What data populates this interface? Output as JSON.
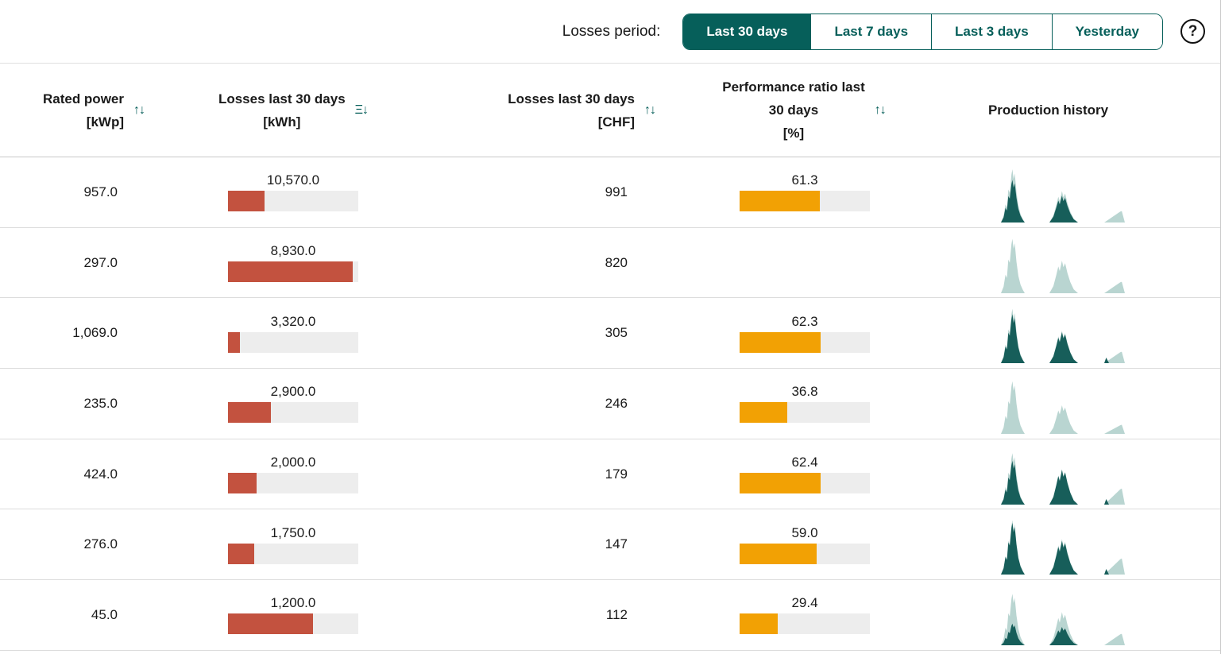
{
  "colors": {
    "teal": "#065f5a",
    "red": "#c3523f",
    "orange": "#f2a104",
    "track": "#ededed",
    "spark_dark": "#175e5a",
    "spark_light": "#b9d5d1"
  },
  "toolbar": {
    "label": "Losses period:",
    "buttons": [
      {
        "label": "Last 30 days",
        "selected": true
      },
      {
        "label": "Last 7 days",
        "selected": false
      },
      {
        "label": "Last 3 days",
        "selected": false
      },
      {
        "label": "Yesterday",
        "selected": false
      }
    ],
    "help_icon": "?"
  },
  "table": {
    "columns": [
      {
        "lines": [
          "Rated power",
          "[kWp]"
        ],
        "sort_icon": "↑↓",
        "sort_state": "inactive"
      },
      {
        "lines": [
          "Losses last 30 days",
          "[kWh]"
        ],
        "sort_icon": "Ξ↓",
        "sort_state": "active-descending"
      },
      {
        "lines": [
          "Losses last 30 days",
          "[CHF]"
        ],
        "sort_icon": "↑↓",
        "sort_state": "inactive"
      },
      {
        "lines": [
          "Performance ratio last",
          "30 days",
          "[%]"
        ],
        "sort_icon": "↑↓",
        "sort_state": "inactive"
      },
      {
        "lines": [
          "Production history"
        ]
      }
    ],
    "rows": [
      {
        "rated_power": "957.0",
        "losses_kwh": "10,570.0",
        "losses_bar_pct": 28,
        "losses_chf": "991",
        "performance_ratio": "61.3",
        "performance_bar_pct": 61.3,
        "spark": {
          "peaks": [
            {
              "h": 0.93,
              "a": 0.8
            },
            {
              "h": 0.55,
              "a": 0.85
            },
            {
              "h": 0.2,
              "a": 0
            }
          ]
        }
      },
      {
        "rated_power": "297.0",
        "losses_kwh": "8,930.0",
        "losses_bar_pct": 96,
        "losses_chf": "820",
        "performance_ratio": "",
        "performance_bar_pct": null,
        "spark": {
          "peaks": [
            {
              "h": 0.95,
              "a": 0
            },
            {
              "h": 0.57,
              "a": 0
            },
            {
              "h": 0.2,
              "a": 0
            }
          ]
        }
      },
      {
        "rated_power": "1,069.0",
        "losses_kwh": "3,320.0",
        "losses_bar_pct": 9,
        "losses_chf": "305",
        "performance_ratio": "62.3",
        "performance_bar_pct": 62.3,
        "spark": {
          "peaks": [
            {
              "h": 0.95,
              "a": 0.9
            },
            {
              "h": 0.57,
              "a": 0.95
            },
            {
              "h": 0.2,
              "a": 0,
              "dot": true
            }
          ]
        }
      },
      {
        "rated_power": "235.0",
        "losses_kwh": "2,900.0",
        "losses_bar_pct": 33,
        "losses_chf": "246",
        "performance_ratio": "36.8",
        "performance_bar_pct": 36.8,
        "spark": {
          "peaks": [
            {
              "h": 0.92,
              "a": 0
            },
            {
              "h": 0.5,
              "a": 0
            },
            {
              "h": 0.16,
              "a": 0
            }
          ]
        }
      },
      {
        "rated_power": "424.0",
        "losses_kwh": "2,000.0",
        "losses_bar_pct": 22,
        "losses_chf": "179",
        "performance_ratio": "62.4",
        "performance_bar_pct": 62.4,
        "spark": {
          "peaks": [
            {
              "h": 0.9,
              "a": 0.85
            },
            {
              "h": 0.62,
              "a": 0.98
            },
            {
              "h": 0.28,
              "a": 0,
              "dot": true
            }
          ]
        }
      },
      {
        "rated_power": "276.0",
        "losses_kwh": "1,750.0",
        "losses_bar_pct": 20,
        "losses_chf": "147",
        "performance_ratio": "59.0",
        "performance_bar_pct": 59.0,
        "spark": {
          "peaks": [
            {
              "h": 0.95,
              "a": 0.95
            },
            {
              "h": 0.62,
              "a": 0.95
            },
            {
              "h": 0.28,
              "a": 0,
              "dot": true
            }
          ]
        }
      },
      {
        "rated_power": "45.0",
        "losses_kwh": "1,200.0",
        "losses_bar_pct": 65,
        "losses_chf": "112",
        "performance_ratio": "29.4",
        "performance_bar_pct": 29.4,
        "spark": {
          "peaks": [
            {
              "h": 0.9,
              "a": 0.42
            },
            {
              "h": 0.58,
              "a": 0.55
            },
            {
              "h": 0.2,
              "a": 0
            }
          ]
        }
      }
    ]
  }
}
